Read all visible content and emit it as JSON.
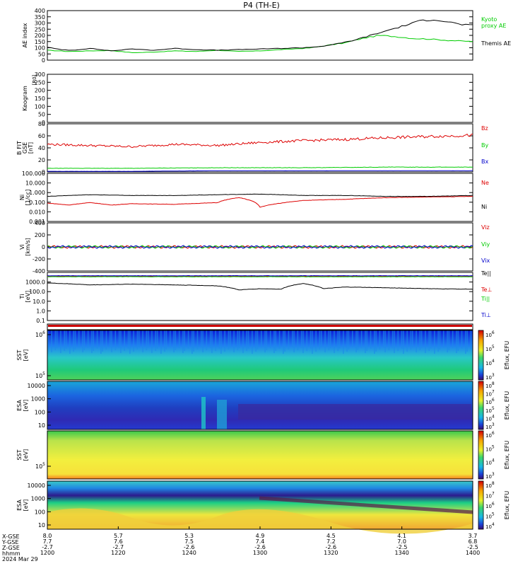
{
  "title": "P4 (TH-E)",
  "date_label": "2024 Mar 29",
  "colorbar_label": "Eflux, EFU",
  "chart_data": [
    {
      "type": "line",
      "panel": "ae",
      "ylabel": "AE index",
      "ylim": [
        0,
        400
      ],
      "yticks": [
        "0",
        "50",
        "100",
        "150",
        "200",
        "250",
        "300",
        "350",
        "400"
      ],
      "series": [
        {
          "name": "Kyoto proxy AE",
          "color": "#00cc00",
          "legend": [
            "Kyoto",
            "proxy AE"
          ],
          "x": [
            0,
            5,
            10,
            15,
            20,
            25,
            30,
            35,
            40,
            45,
            50,
            55,
            60,
            62,
            66,
            70,
            74,
            78,
            82,
            86,
            90,
            94,
            100
          ],
          "y": [
            80,
            70,
            75,
            78,
            60,
            65,
            75,
            70,
            80,
            70,
            75,
            85,
            95,
            100,
            120,
            140,
            175,
            200,
            190,
            175,
            170,
            160,
            150
          ]
        },
        {
          "name": "Themis AE",
          "color": "#000000",
          "legend": [
            "Themis AE"
          ],
          "x": [
            0,
            3,
            6,
            10,
            15,
            20,
            25,
            30,
            35,
            40,
            45,
            50,
            55,
            60,
            64,
            68,
            72,
            76,
            80,
            84,
            88,
            91,
            94,
            97,
            100
          ],
          "y": [
            105,
            85,
            80,
            95,
            75,
            90,
            80,
            95,
            85,
            80,
            85,
            90,
            95,
            100,
            110,
            130,
            160,
            200,
            240,
            280,
            320,
            330,
            310,
            290,
            280
          ]
        }
      ]
    },
    {
      "type": "line",
      "panel": "keogram",
      "ylabel": "Keogram",
      "ylim": [
        0,
        300
      ],
      "yticks": [
        "0",
        "50",
        "100",
        "150",
        "200",
        "250",
        "300"
      ],
      "unit_label": "[R0]",
      "series": []
    },
    {
      "type": "line",
      "panel": "bfield",
      "ylabel": "B FIT",
      "ylabel2": "GSE",
      "ylabel3": "[nT]",
      "ylim": [
        0,
        80
      ],
      "yticks": [
        "0",
        "20",
        "40",
        "60",
        "80"
      ],
      "series": [
        {
          "name": "Bz",
          "color": "#dd0000",
          "x": [
            0,
            10,
            20,
            30,
            40,
            50,
            60,
            70,
            80,
            90,
            100
          ],
          "y": [
            46,
            44,
            42,
            46,
            44,
            49,
            52,
            54,
            57,
            59,
            61
          ]
        },
        {
          "name": "By",
          "color": "#00cc00",
          "x": [
            0,
            20,
            40,
            60,
            80,
            100
          ],
          "y": [
            6,
            6,
            7,
            7,
            8,
            8
          ]
        },
        {
          "name": "Bx",
          "color": "#0000cc",
          "x": [
            0,
            20,
            40,
            60,
            80,
            100
          ],
          "y": [
            1,
            1,
            2,
            2,
            2,
            2
          ]
        }
      ]
    },
    {
      "type": "line",
      "panel": "density",
      "ylabel": "Ni",
      "ylabel2": "[1/cc]",
      "yscale": "log",
      "ylim": [
        0.001,
        100
      ],
      "yticks": [
        "100.000",
        "10.000",
        "1.000",
        "0.100",
        "0.010",
        "0.001"
      ],
      "series": [
        {
          "name": "Ne",
          "color": "#dd0000",
          "x": [
            0,
            5,
            10,
            15,
            20,
            30,
            40,
            45,
            50,
            55,
            60,
            70,
            80,
            90,
            100
          ],
          "y": [
            0.08,
            0.05,
            0.09,
            0.05,
            0.07,
            0.06,
            0.09,
            0.3,
            0.03,
            0.08,
            0.15,
            0.2,
            0.3,
            0.35,
            0.4
          ]
        },
        {
          "name": "Ni",
          "color": "#000000",
          "x": [
            0,
            10,
            20,
            30,
            40,
            50,
            60,
            70,
            80,
            90,
            100
          ],
          "y": [
            0.4,
            0.6,
            0.5,
            0.5,
            0.6,
            0.7,
            0.5,
            0.5,
            0.4,
            0.4,
            0.5
          ]
        }
      ]
    },
    {
      "type": "line",
      "panel": "velocity",
      "ylabel": "Vi",
      "ylabel2": "[km/s]",
      "ylim": [
        -400,
        400
      ],
      "yticks": [
        "-400",
        "-200",
        "0",
        "200",
        "400"
      ],
      "series": [
        {
          "name": "Viz",
          "color": "#dd0000",
          "x": [
            0,
            100
          ],
          "y": [
            0,
            0
          ]
        },
        {
          "name": "Viy",
          "color": "#00cc00",
          "x": [
            0,
            100
          ],
          "y": [
            0,
            0
          ]
        },
        {
          "name": "Vix",
          "color": "#0000cc",
          "x": [
            0,
            100
          ],
          "y": [
            0,
            0
          ]
        }
      ]
    },
    {
      "type": "line",
      "panel": "temperature",
      "ylabel": "Ti",
      "ylabel2": "[eV]",
      "yscale": "log",
      "ylim": [
        0.1,
        10000
      ],
      "yticks": [
        "1000.0",
        "100.0",
        "10.0",
        "1.0",
        "0.1"
      ],
      "series": [
        {
          "name": "Te||",
          "color": "#000000",
          "x": [
            0,
            10,
            20,
            30,
            40,
            45,
            50,
            55,
            60,
            65,
            70,
            80,
            90,
            100
          ],
          "y": [
            800,
            500,
            600,
            500,
            400,
            150,
            200,
            180,
            700,
            200,
            300,
            250,
            200,
            180
          ]
        },
        {
          "name": "Te⊥",
          "color": "#dd0000",
          "x": [
            0,
            100
          ],
          "y": [
            4000,
            4000
          ]
        },
        {
          "name": "Ti||",
          "color": "#00cc00",
          "x": [
            0,
            100
          ],
          "y": [
            3500,
            3500
          ]
        },
        {
          "name": "Ti⊥",
          "color": "#0000cc",
          "x": [
            0,
            100
          ],
          "y": [
            4500,
            4500
          ]
        }
      ]
    },
    {
      "type": "heatmap",
      "panel": "sst_elec",
      "ylabel": "SST",
      "ylabel2": "[eV]",
      "yticks": [
        "10^6",
        "10^5"
      ],
      "cbar_ticks": [
        "10^6",
        "10^5",
        "10^4",
        "10^3"
      ]
    },
    {
      "type": "heatmap",
      "panel": "esa_elec",
      "ylabel": "ESA",
      "ylabel2": "[eV]",
      "yticks": [
        "10000",
        "1000",
        "100",
        "10"
      ],
      "cbar_ticks": [
        "10^8",
        "10^7",
        "10^6",
        "10^5",
        "10^4",
        "10^3"
      ]
    },
    {
      "type": "heatmap",
      "panel": "sst_ion",
      "ylabel": "SST",
      "ylabel2": "[eV]",
      "yticks": [
        "10^5"
      ],
      "cbar_ticks": [
        "10^6",
        "10^5",
        "10^4",
        "10^3"
      ]
    },
    {
      "type": "heatmap",
      "panel": "esa_ion",
      "ylabel": "ESA",
      "ylabel2": "[eV]",
      "yticks": [
        "10000",
        "1000",
        "100",
        "10"
      ],
      "cbar_ticks": [
        "10^8",
        "10^7",
        "10^6",
        "10^5",
        "10^4"
      ]
    }
  ],
  "xaxis": {
    "row_labels": [
      "X-GSE",
      "Y-GSE",
      "Z-GSE",
      "hhmm",
      "2024 Mar 29"
    ],
    "ticks": [
      {
        "x": "8.0",
        "y": "7.7",
        "z": "-2.7",
        "t": "1200"
      },
      {
        "x": "5.7",
        "y": "7.6",
        "z": "-2.7",
        "t": "1220"
      },
      {
        "x": "5.3",
        "y": "7.5",
        "z": "-2.6",
        "t": "1240"
      },
      {
        "x": "4.9",
        "y": "7.4",
        "z": "-2.6",
        "t": "1300"
      },
      {
        "x": "4.5",
        "y": "7.2",
        "z": "-2.6",
        "t": "1320"
      },
      {
        "x": "4.1",
        "y": "7.0",
        "z": "-2.5",
        "t": "1340"
      },
      {
        "x": "3.7",
        "y": "6.8",
        "z": "-2.5",
        "t": "1400"
      }
    ]
  }
}
